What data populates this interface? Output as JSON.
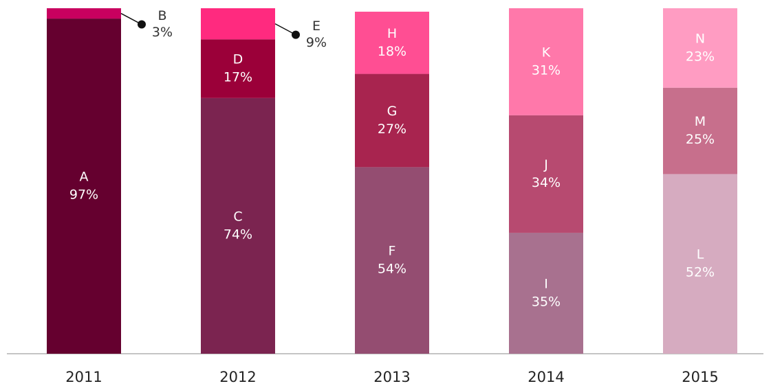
{
  "chart_data": {
    "type": "stacked_bar",
    "categories": [
      "2011",
      "2012",
      "2013",
      "2014",
      "2015"
    ],
    "ylim": [
      0,
      100
    ],
    "bars": [
      {
        "names": [
          "A",
          "B"
        ],
        "values": [
          97,
          3
        ],
        "value_labels": [
          "97%",
          "3%"
        ],
        "colors": [
          "#65002f",
          "#c8005f"
        ]
      },
      {
        "names": [
          "C",
          "D",
          "E"
        ],
        "values": [
          74,
          17,
          9
        ],
        "value_labels": [
          "74%",
          "17%",
          "9%"
        ],
        "colors": [
          "#7b2450",
          "#9b0039",
          "#ff2a7f"
        ]
      },
      {
        "names": [
          "F",
          "G",
          "H"
        ],
        "values": [
          54,
          27,
          18
        ],
        "value_labels": [
          "54%",
          "27%",
          "18%"
        ],
        "colors": [
          "#944d71",
          "#a8244f",
          "#ff4e93"
        ]
      },
      {
        "names": [
          "I",
          "J",
          "K"
        ],
        "values": [
          35,
          34,
          31
        ],
        "value_labels": [
          "35%",
          "34%",
          "31%"
        ],
        "colors": [
          "#a8718f",
          "#b74a70",
          "#ff78aa"
        ]
      },
      {
        "names": [
          "L",
          "M",
          "N"
        ],
        "values": [
          52,
          25,
          23
        ],
        "value_labels": [
          "52%",
          "25%",
          "23%"
        ],
        "colors": [
          "#d6abc0",
          "#c76f8c",
          "#ff9cc2"
        ]
      }
    ]
  }
}
